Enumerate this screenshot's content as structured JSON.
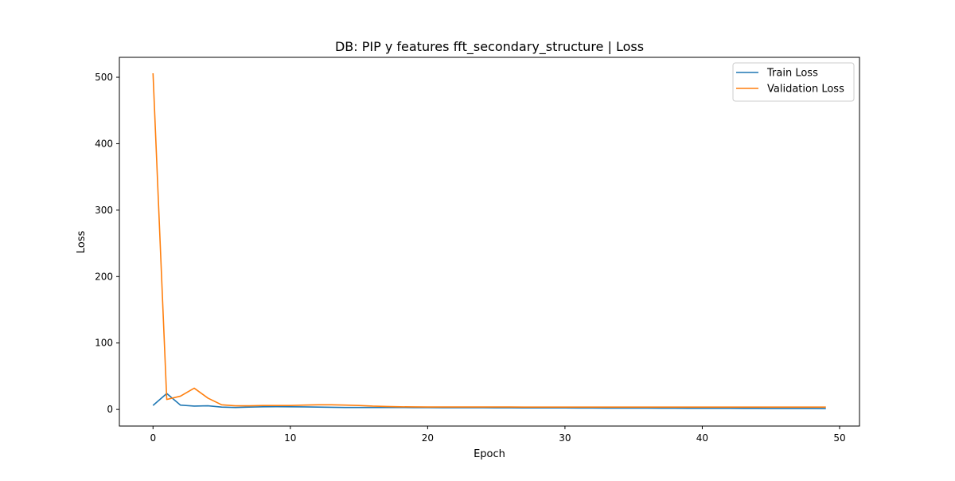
{
  "chart_data": {
    "type": "line",
    "title": "DB: PIP y features fft_secondary_structure | Loss",
    "xlabel": "Epoch",
    "ylabel": "Loss",
    "xlim": [
      -2.45,
      51.45
    ],
    "ylim": [
      -25,
      530
    ],
    "xticks": [
      0,
      10,
      20,
      30,
      40,
      50
    ],
    "yticks": [
      0,
      100,
      200,
      300,
      400,
      500
    ],
    "legend_position": "top-right",
    "grid": false,
    "x": [
      0,
      1,
      2,
      3,
      4,
      5,
      6,
      7,
      8,
      9,
      10,
      11,
      12,
      13,
      14,
      15,
      16,
      17,
      18,
      19,
      20,
      21,
      22,
      23,
      24,
      25,
      26,
      27,
      28,
      29,
      30,
      31,
      32,
      33,
      34,
      35,
      36,
      37,
      38,
      39,
      40,
      41,
      42,
      43,
      44,
      45,
      46,
      47,
      48,
      49
    ],
    "series": [
      {
        "name": "Train Loss",
        "color": "#1f77b4",
        "values": [
          6,
          24,
          6.5,
          5,
          5.5,
          3.5,
          3,
          3.5,
          4,
          4.2,
          4,
          3.8,
          3.5,
          3.2,
          3,
          3,
          3,
          3,
          3,
          2.8,
          2.8,
          2.7,
          2.7,
          2.6,
          2.6,
          2.5,
          2.5,
          2.4,
          2.4,
          2.3,
          2.3,
          2.2,
          2.2,
          2.1,
          2.1,
          2.0,
          2.0,
          1.9,
          1.9,
          1.8,
          1.8,
          1.7,
          1.7,
          1.6,
          1.6,
          1.5,
          1.5,
          1.4,
          1.4,
          1.3
        ]
      },
      {
        "name": "Validation Loss",
        "color": "#ff7f0e",
        "values": [
          506,
          15,
          20,
          32,
          17,
          7,
          5.5,
          5.5,
          6,
          6,
          6,
          6.5,
          7,
          7,
          6.5,
          6,
          5,
          4.5,
          4,
          3.8,
          3.7,
          3.7,
          3.7,
          3.7,
          3.7,
          3.7,
          3.7,
          3.6,
          3.6,
          3.6,
          3.6,
          3.6,
          3.6,
          3.6,
          3.6,
          3.6,
          3.6,
          3.6,
          3.6,
          3.6,
          3.6,
          3.5,
          3.5,
          3.5,
          3.5,
          3.5,
          3.5,
          3.5,
          3.5,
          3.5
        ]
      }
    ]
  }
}
